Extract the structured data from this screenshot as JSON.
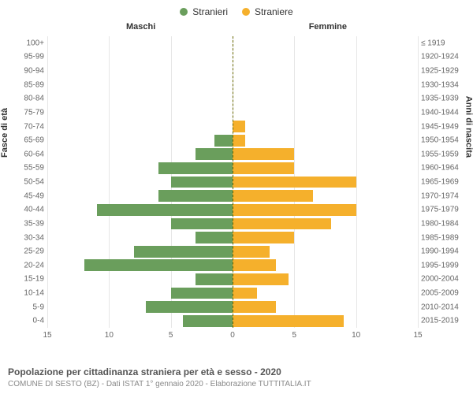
{
  "legend": {
    "male_label": "Stranieri",
    "female_label": "Straniere",
    "male_color": "#6a9e5c",
    "female_color": "#f5b02c"
  },
  "column_titles": {
    "left": "Maschi",
    "right": "Femmine"
  },
  "y_axis_titles": {
    "left": "Fasce di età",
    "right": "Anni di nascita"
  },
  "chart": {
    "type": "population-pyramid",
    "x_max": 15,
    "x_ticks": [
      15,
      10,
      5,
      0,
      5,
      10,
      15
    ],
    "grid_color": "#e6e6e6",
    "center_line_color": "#666600",
    "background_color": "#ffffff",
    "male_color": "#6a9e5c",
    "female_color": "#f5b02c",
    "label_color": "#666666",
    "label_fontsize": 10,
    "rows": [
      {
        "age": "100+",
        "birth": "≤ 1919",
        "m": 0,
        "f": 0
      },
      {
        "age": "95-99",
        "birth": "1920-1924",
        "m": 0,
        "f": 0
      },
      {
        "age": "90-94",
        "birth": "1925-1929",
        "m": 0,
        "f": 0
      },
      {
        "age": "85-89",
        "birth": "1930-1934",
        "m": 0,
        "f": 0
      },
      {
        "age": "80-84",
        "birth": "1935-1939",
        "m": 0,
        "f": 0
      },
      {
        "age": "75-79",
        "birth": "1940-1944",
        "m": 0,
        "f": 0
      },
      {
        "age": "70-74",
        "birth": "1945-1949",
        "m": 0,
        "f": 1
      },
      {
        "age": "65-69",
        "birth": "1950-1954",
        "m": 1.5,
        "f": 1
      },
      {
        "age": "60-64",
        "birth": "1955-1959",
        "m": 3,
        "f": 5
      },
      {
        "age": "55-59",
        "birth": "1960-1964",
        "m": 6,
        "f": 5
      },
      {
        "age": "50-54",
        "birth": "1965-1969",
        "m": 5,
        "f": 10
      },
      {
        "age": "45-49",
        "birth": "1970-1974",
        "m": 6,
        "f": 6.5
      },
      {
        "age": "40-44",
        "birth": "1975-1979",
        "m": 11,
        "f": 10
      },
      {
        "age": "35-39",
        "birth": "1980-1984",
        "m": 5,
        "f": 8
      },
      {
        "age": "30-34",
        "birth": "1985-1989",
        "m": 3,
        "f": 5
      },
      {
        "age": "25-29",
        "birth": "1990-1994",
        "m": 8,
        "f": 3
      },
      {
        "age": "20-24",
        "birth": "1995-1999",
        "m": 12,
        "f": 3.5
      },
      {
        "age": "15-19",
        "birth": "2000-2004",
        "m": 3,
        "f": 4.5
      },
      {
        "age": "10-14",
        "birth": "2005-2009",
        "m": 5,
        "f": 2
      },
      {
        "age": "5-9",
        "birth": "2010-2014",
        "m": 7,
        "f": 3.5
      },
      {
        "age": "0-4",
        "birth": "2015-2019",
        "m": 4,
        "f": 9
      }
    ]
  },
  "footer": {
    "title": "Popolazione per cittadinanza straniera per età e sesso - 2020",
    "subtitle": "COMUNE DI SESTO (BZ) - Dati ISTAT 1° gennaio 2020 - Elaborazione TUTTITALIA.IT"
  }
}
